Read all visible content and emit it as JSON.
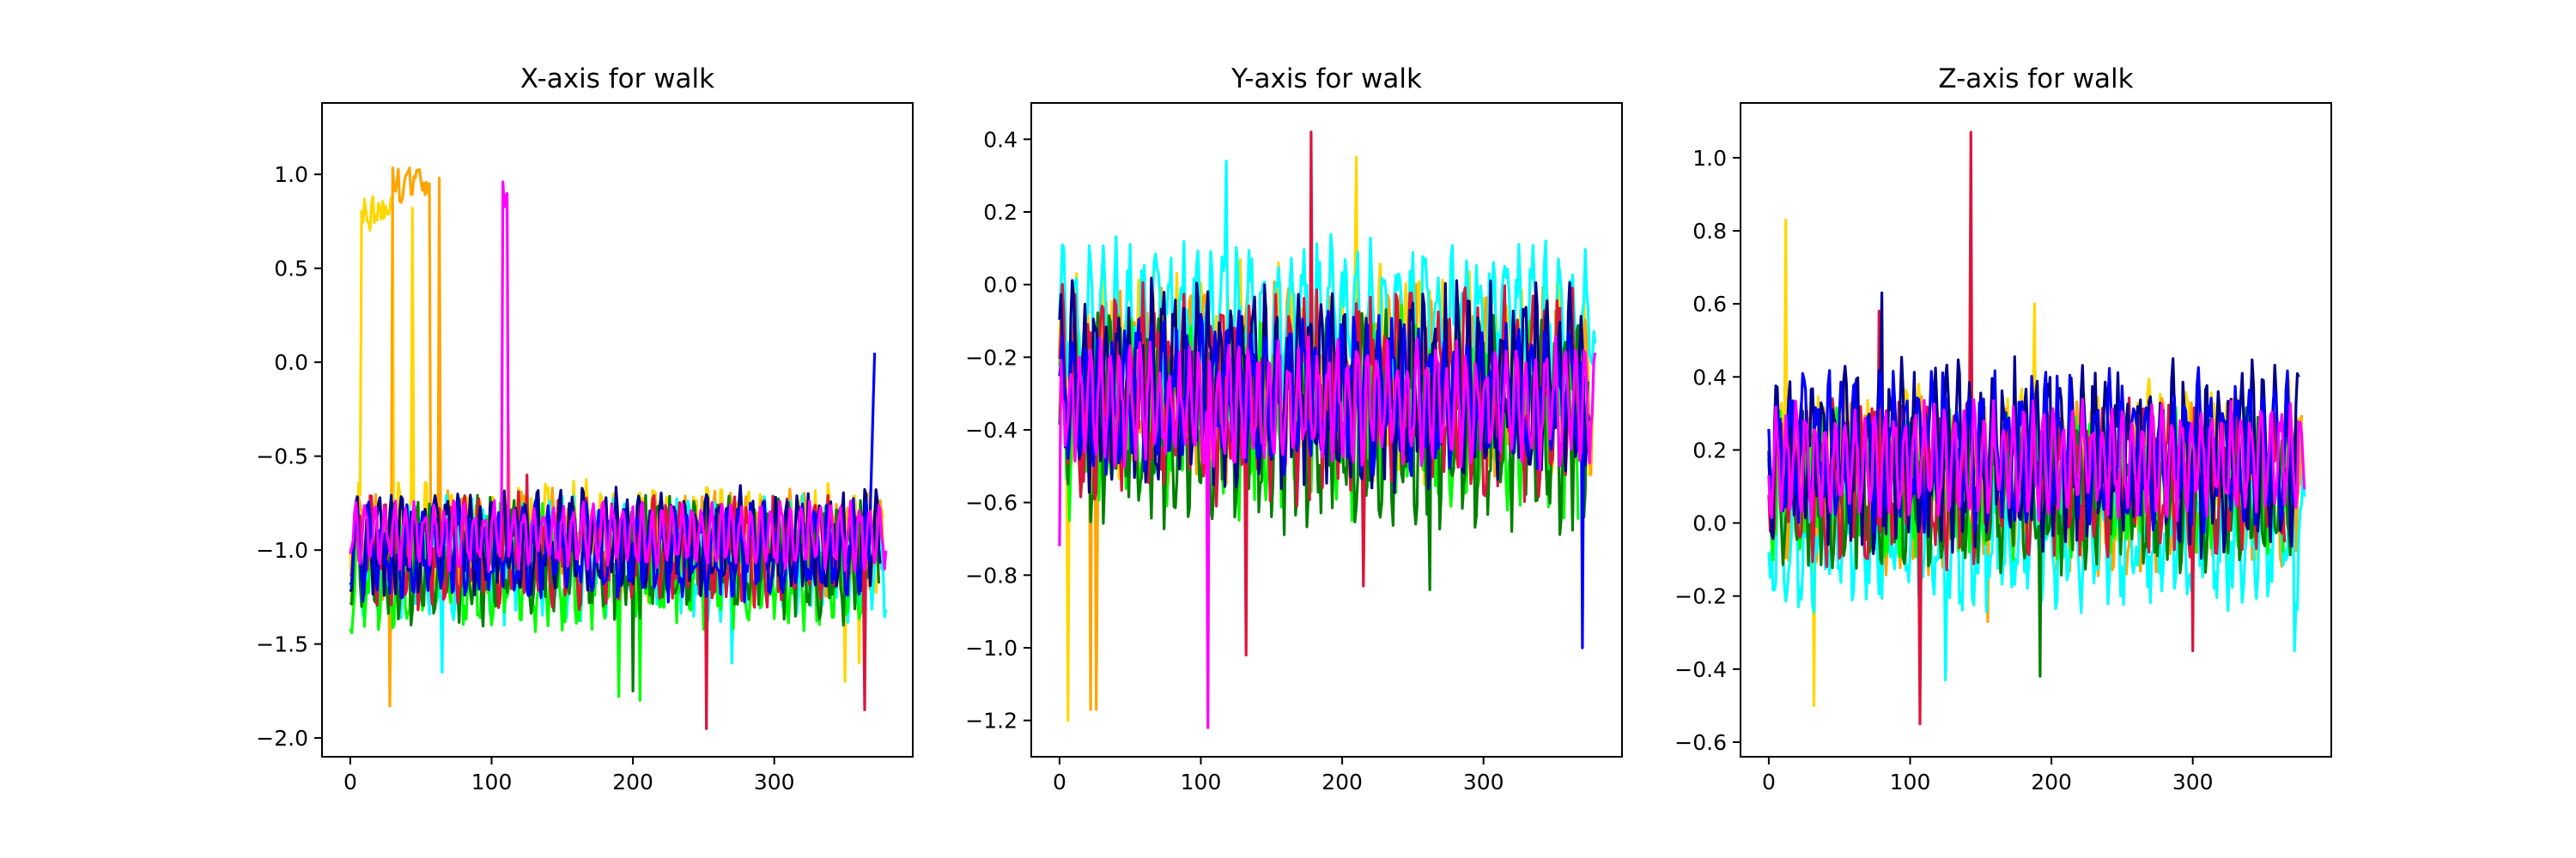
{
  "chart_data": [
    {
      "type": "line",
      "title": "X-axis for walk",
      "xlabel": "",
      "ylabel": "",
      "xlim": [
        -20,
        398
      ],
      "ylim": [
        -2.1,
        1.38
      ],
      "xticks": [
        0,
        100,
        200,
        300
      ],
      "yticks": [
        1.0,
        0.5,
        0.0,
        -0.5,
        -1.0,
        -1.5,
        -2.0
      ],
      "ytick_labels": [
        "1.0",
        "0.5",
        "0.0",
        "−0.5",
        "−1.0",
        "−1.5",
        "−2.0"
      ],
      "grid": false,
      "series": [
        {
          "color": "#FFD700",
          "n": 378,
          "base": -0.95,
          "amp": 0.22,
          "period": 9.5,
          "noise": 0.12,
          "events": [
            {
              "start": 8,
              "end": 30,
              "value": 0.8
            }
          ],
          "spikes": [
            [
              44,
              0.82
            ],
            [
              112,
              -0.33
            ],
            [
              350,
              -1.7
            ],
            [
              360,
              -1.6
            ]
          ]
        },
        {
          "color": "#FFA500",
          "n": 378,
          "base": -0.98,
          "amp": 0.2,
          "period": 10.5,
          "noise": 0.12,
          "events": [
            {
              "start": 30,
              "end": 56,
              "value": 0.95
            }
          ],
          "spikes": [
            [
              28,
              -1.83
            ],
            [
              63,
              0.98
            ]
          ]
        },
        {
          "color": "#00FFFF",
          "n": 380,
          "base": -1.05,
          "amp": 0.22,
          "period": 9,
          "noise": 0.14,
          "spikes": [
            [
              65,
              -1.65
            ],
            [
              270,
              -1.6
            ]
          ]
        },
        {
          "color": "#00FF00",
          "n": 368,
          "base": -1.1,
          "amp": 0.22,
          "period": 10,
          "noise": 0.14,
          "spikes": [
            [
              190,
              -1.78
            ],
            [
              205,
              -1.8
            ]
          ]
        },
        {
          "color": "#008000",
          "n": 375,
          "base": -1.05,
          "amp": 0.22,
          "period": 8.5,
          "noise": 0.14,
          "spikes": [
            [
              200,
              -1.75
            ]
          ]
        },
        {
          "color": "#DC143C",
          "n": 366,
          "base": -1.0,
          "amp": 0.2,
          "period": 9.5,
          "noise": 0.12,
          "spikes": [
            [
              252,
              -1.95
            ],
            [
              364,
              -1.85
            ],
            [
              125,
              -0.6
            ]
          ]
        },
        {
          "color": "#00008B",
          "n": 376,
          "base": -0.95,
          "amp": 0.2,
          "period": 8,
          "noise": 0.1
        },
        {
          "color": "#0000FF",
          "n": 372,
          "base": -1.0,
          "amp": 0.18,
          "period": 9,
          "noise": 0.1,
          "end_value": 0.05
        },
        {
          "color": "#FF00FF",
          "n": 380,
          "base": -0.92,
          "amp": 0.14,
          "period": 7,
          "noise": 0.06,
          "events": [
            {
              "start": 108,
              "end": 111,
              "value": 0.87
            }
          ]
        }
      ]
    },
    {
      "type": "line",
      "title": "Y-axis for walk",
      "xlabel": "",
      "ylabel": "",
      "xlim": [
        -20,
        398
      ],
      "ylim": [
        -1.3,
        0.5
      ],
      "xticks": [
        0,
        100,
        200,
        300
      ],
      "yticks": [
        0.4,
        0.2,
        0.0,
        -0.2,
        -0.4,
        -0.6,
        -0.8,
        -1.0,
        -1.2
      ],
      "ytick_labels": [
        "0.4",
        "0.2",
        "0.0",
        "−0.2",
        "−0.4",
        "−0.6",
        "−0.8",
        "−1.0",
        "−1.2"
      ],
      "grid": false,
      "series": [
        {
          "color": "#FFD700",
          "n": 378,
          "base": -0.25,
          "amp": 0.2,
          "period": 9,
          "noise": 0.12,
          "spikes": [
            [
              6,
              -1.2
            ],
            [
              210,
              0.35
            ]
          ]
        },
        {
          "color": "#FFA500",
          "n": 378,
          "base": -0.28,
          "amp": 0.18,
          "period": 10,
          "noise": 0.12,
          "spikes": [
            [
              22,
              -1.17
            ],
            [
              26,
              -1.17
            ]
          ]
        },
        {
          "color": "#00FFFF",
          "n": 380,
          "base": -0.1,
          "amp": 0.14,
          "period": 9.5,
          "noise": 0.1,
          "spikes": [
            [
              118,
              0.34
            ]
          ]
        },
        {
          "color": "#00FF00",
          "n": 368,
          "base": -0.35,
          "amp": 0.18,
          "period": 10,
          "noise": 0.12
        },
        {
          "color": "#008000",
          "n": 375,
          "base": -0.38,
          "amp": 0.2,
          "period": 8.5,
          "noise": 0.12,
          "spikes": [
            [
              262,
              -0.84
            ]
          ]
        },
        {
          "color": "#DC143C",
          "n": 366,
          "base": -0.3,
          "amp": 0.2,
          "period": 9.5,
          "noise": 0.12,
          "spikes": [
            [
              178,
              0.42
            ],
            [
              132,
              -1.02
            ],
            [
              215,
              -0.83
            ]
          ]
        },
        {
          "color": "#00008B",
          "n": 376,
          "base": -0.28,
          "amp": 0.2,
          "period": 8,
          "noise": 0.1
        },
        {
          "color": "#0000FF",
          "n": 372,
          "base": -0.3,
          "amp": 0.15,
          "period": 9,
          "noise": 0.08,
          "spikes": [
            [
              370,
              -1.0
            ]
          ]
        },
        {
          "color": "#FF00FF",
          "n": 380,
          "base": -0.33,
          "amp": 0.13,
          "period": 7,
          "noise": 0.06,
          "spikes": [
            [
              105,
              -1.22
            ],
            [
              0,
              -0.72
            ]
          ]
        }
      ]
    },
    {
      "type": "line",
      "title": "Z-axis for walk",
      "xlabel": "",
      "ylabel": "",
      "xlim": [
        -20,
        398
      ],
      "ylim": [
        -0.64,
        1.15
      ],
      "xticks": [
        0,
        100,
        200,
        300
      ],
      "yticks": [
        1.0,
        0.8,
        0.6,
        0.4,
        0.2,
        0.0,
        -0.2,
        -0.4,
        -0.6
      ],
      "ytick_labels": [
        "1.0",
        "0.8",
        "0.6",
        "0.4",
        "0.2",
        "0.0",
        "−0.2",
        "−0.4",
        "−0.6"
      ],
      "grid": false,
      "series": [
        {
          "color": "#FFD700",
          "n": 378,
          "base": 0.15,
          "amp": 0.15,
          "period": 9,
          "noise": 0.1,
          "spikes": [
            [
              12,
              0.83
            ],
            [
              32,
              -0.5
            ],
            [
              188,
              0.6
            ]
          ]
        },
        {
          "color": "#FFA500",
          "n": 378,
          "base": 0.1,
          "amp": 0.15,
          "period": 10,
          "noise": 0.1,
          "spikes": [
            [
              155,
              -0.27
            ]
          ]
        },
        {
          "color": "#00FFFF",
          "n": 380,
          "base": -0.05,
          "amp": 0.12,
          "period": 9.5,
          "noise": 0.1,
          "spikes": [
            [
              125,
              -0.43
            ],
            [
              372,
              -0.35
            ]
          ]
        },
        {
          "color": "#00FF00",
          "n": 368,
          "base": 0.1,
          "amp": 0.12,
          "period": 10,
          "noise": 0.1
        },
        {
          "color": "#008000",
          "n": 375,
          "base": 0.08,
          "amp": 0.14,
          "period": 8.5,
          "noise": 0.1,
          "spikes": [
            [
              192,
              -0.42
            ]
          ]
        },
        {
          "color": "#DC143C",
          "n": 366,
          "base": 0.12,
          "amp": 0.15,
          "period": 9.5,
          "noise": 0.1,
          "spikes": [
            [
              143,
              1.07
            ],
            [
              107,
              -0.55
            ],
            [
              300,
              -0.35
            ],
            [
              78,
              0.58
            ]
          ]
        },
        {
          "color": "#00008B",
          "n": 376,
          "base": 0.18,
          "amp": 0.18,
          "period": 8,
          "noise": 0.1,
          "spikes": [
            [
              80,
              0.63
            ]
          ]
        },
        {
          "color": "#0000FF",
          "n": 372,
          "base": 0.2,
          "amp": 0.15,
          "period": 9,
          "noise": 0.08
        },
        {
          "color": "#FF00FF",
          "n": 380,
          "base": 0.17,
          "amp": 0.12,
          "period": 7,
          "noise": 0.05
        }
      ]
    }
  ]
}
